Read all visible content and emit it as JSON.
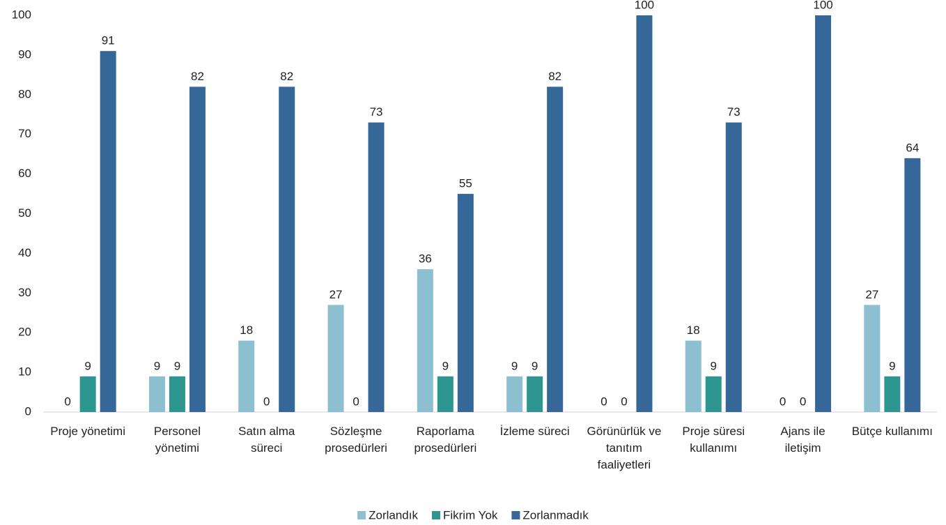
{
  "chart_data": {
    "type": "bar",
    "categories": [
      "Proje yönetimi",
      "Personel yönetimi",
      "Satın alma süreci",
      "Sözleşme prosedürleri",
      "Raporlama prosedürleri",
      "İzleme süreci",
      "Görünürlük ve tanıtım faaliyetleri",
      "Proje süresi kullanımı",
      "Ajans ile iletişim",
      "Bütçe kullanımı"
    ],
    "series": [
      {
        "name": "Zorlandık",
        "color": "#8cbfd0",
        "values": [
          0,
          9,
          18,
          27,
          36,
          9,
          0,
          18,
          0,
          27
        ]
      },
      {
        "name": "Fikrim Yok",
        "color": "#2e9690",
        "values": [
          9,
          9,
          0,
          0,
          9,
          9,
          0,
          9,
          0,
          9
        ]
      },
      {
        "name": "Zorlanmadık",
        "color": "#356799",
        "values": [
          91,
          82,
          82,
          73,
          55,
          82,
          100,
          73,
          100,
          64
        ]
      }
    ],
    "ylim": [
      0,
      100
    ],
    "yticks": [
      0,
      10,
      20,
      30,
      40,
      50,
      60,
      70,
      80,
      90,
      100
    ],
    "grid": false,
    "legend": "bottom"
  }
}
